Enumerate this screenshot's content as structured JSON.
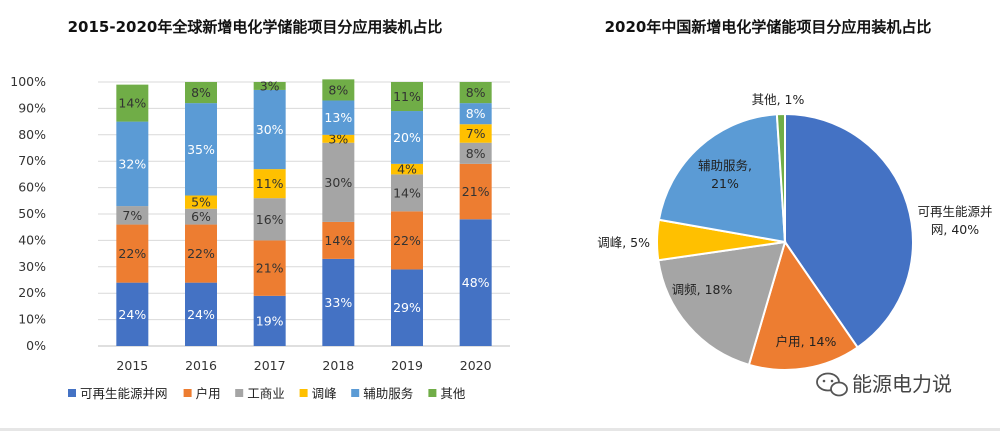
{
  "colors": {
    "renewable": "#4472C4",
    "household": "#ED7D31",
    "industrial": "#A5A5A5",
    "peak": "#FFC000",
    "ancillary": "#5B9BD5",
    "other": "#70AD47",
    "grid": "#d9d9d9",
    "axis": "#bfbfbf"
  },
  "watermark": "能源电力说",
  "chart_data": [
    {
      "type": "bar",
      "stacked": true,
      "title": "2015-2020年全球新增电化学储能项目分应用装机占比",
      "categories": [
        "2015",
        "2016",
        "2017",
        "2018",
        "2019",
        "2020"
      ],
      "ylim": [
        0,
        100
      ],
      "yticks": [
        "0%",
        "10%",
        "20%",
        "30%",
        "40%",
        "50%",
        "60%",
        "70%",
        "80%",
        "90%",
        "100%"
      ],
      "grid": true,
      "legend_position": "bottom",
      "series": [
        {
          "name": "可再生能源并网",
          "color_key": "renewable",
          "values": [
            24,
            24,
            19,
            33,
            29,
            48
          ],
          "labels": [
            "24%",
            "24%",
            "19%",
            "33%",
            "29%",
            "48%"
          ]
        },
        {
          "name": "户用",
          "color_key": "household",
          "values": [
            22,
            22,
            21,
            14,
            22,
            21
          ],
          "labels": [
            "22%",
            "22%",
            "21%",
            "14%",
            "22%",
            "21%"
          ]
        },
        {
          "name": "工商业",
          "color_key": "industrial",
          "values": [
            7,
            6,
            16,
            30,
            14,
            8
          ],
          "labels": [
            "7%",
            "6%",
            "16%",
            "30%",
            "14%",
            "8%"
          ]
        },
        {
          "name": "调峰",
          "color_key": "peak",
          "values": [
            0,
            5,
            11,
            3,
            4,
            7
          ],
          "labels": [
            "",
            "5%",
            "11%",
            "3%",
            "4%",
            "7%"
          ]
        },
        {
          "name": "辅助服务",
          "color_key": "ancillary",
          "values": [
            32,
            35,
            30,
            13,
            20,
            8
          ],
          "labels": [
            "32%",
            "35%",
            "30%",
            "13%",
            "20%",
            "8%"
          ]
        },
        {
          "name": "其他",
          "color_key": "other",
          "values": [
            14,
            8,
            3,
            8,
            11,
            8
          ],
          "labels": [
            "14%",
            "8%",
            "3%",
            "8%",
            "11%",
            "8%"
          ]
        }
      ]
    },
    {
      "type": "pie",
      "title": "2020年中国新增电化学储能项目分应用装机占比",
      "slices": [
        {
          "name": "可再生能源并网",
          "value": 40,
          "color_key": "renewable",
          "label_lines": [
            "可再生能源并",
            "网, 40%"
          ]
        },
        {
          "name": "户用",
          "value": 14,
          "color_key": "household",
          "label_lines": [
            "户用, 14%"
          ]
        },
        {
          "name": "调频",
          "value": 18,
          "color_key": "industrial",
          "label_lines": [
            "调频, 18%"
          ]
        },
        {
          "name": "调峰",
          "value": 5,
          "color_key": "peak",
          "label_lines": [
            "调峰, 5%"
          ]
        },
        {
          "name": "辅助服务",
          "value": 21,
          "color_key": "ancillary",
          "label_lines": [
            "辅助服务,",
            "21%"
          ]
        },
        {
          "name": "其他",
          "value": 1,
          "color_key": "other",
          "label_lines": [
            "其他, 1%"
          ]
        }
      ]
    }
  ]
}
